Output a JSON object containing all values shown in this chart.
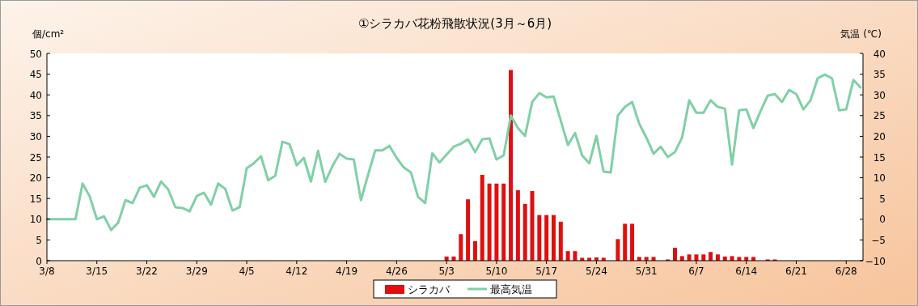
{
  "chart_data": {
    "type": "bar",
    "title": "①シラカバ花粉飛散状況(3月～6月)",
    "ylabel": "個/cm²",
    "y2label": "気温 (℃)",
    "categories": [
      "3/8",
      null,
      null,
      null,
      null,
      null,
      null,
      "3/15",
      null,
      null,
      null,
      null,
      null,
      null,
      "3/22",
      null,
      null,
      null,
      null,
      null,
      null,
      "3/29",
      null,
      null,
      null,
      null,
      null,
      null,
      "4/5",
      null,
      null,
      null,
      null,
      null,
      null,
      "4/12",
      null,
      null,
      null,
      null,
      null,
      null,
      "4/19",
      null,
      null,
      null,
      null,
      null,
      null,
      "4/26",
      null,
      null,
      null,
      null,
      null,
      null,
      "5/3",
      null,
      null,
      null,
      null,
      null,
      null,
      "5/10",
      null,
      null,
      null,
      null,
      null,
      null,
      "5/17",
      null,
      null,
      null,
      null,
      null,
      null,
      "5/24",
      null,
      null,
      null,
      null,
      null,
      null,
      "5/31",
      null,
      null,
      null,
      null,
      null,
      null,
      "6/7",
      null,
      null,
      null,
      null,
      null,
      null,
      "6/14",
      null,
      null,
      null,
      null,
      null,
      null,
      "6/21",
      null,
      null,
      null,
      null,
      null,
      null,
      "6/28",
      null,
      null
    ],
    "series": [
      {
        "name": "シラカバ",
        "color": "#e00f0f",
        "values": [
          null,
          null,
          null,
          null,
          null,
          null,
          null,
          null,
          null,
          null,
          null,
          null,
          null,
          null,
          null,
          null,
          null,
          null,
          null,
          null,
          null,
          null,
          null,
          null,
          null,
          null,
          null,
          null,
          null,
          null,
          null,
          null,
          null,
          null,
          null,
          null,
          null,
          null,
          null,
          null,
          null,
          null,
          null,
          null,
          null,
          null,
          null,
          null,
          null,
          null,
          null,
          null,
          null,
          null,
          null,
          null,
          1.0,
          1.0,
          6.4,
          14.8,
          4.7,
          20.7,
          18.6,
          18.6,
          18.6,
          46,
          17.0,
          13.7,
          16.8,
          11.0,
          11.0,
          11.0,
          9.4,
          2.3,
          2.3,
          0.7,
          0.7,
          0.8,
          0.7,
          null,
          5.2,
          8.9,
          8.9,
          0.9,
          0.9,
          0.9,
          null,
          0.3,
          3.1,
          1.1,
          1.5,
          1.5,
          1.5,
          2.1,
          1.5,
          1.0,
          1.1,
          0.9,
          0.9,
          0.9,
          null,
          0.3,
          0.3,
          null,
          null,
          null,
          null,
          null,
          null,
          null,
          null,
          null,
          null,
          null,
          null
        ]
      },
      {
        "name": "最高気温",
        "type": "line",
        "axis": "y2",
        "color": "#80d0a6",
        "values": [
          0,
          0,
          0,
          0,
          0,
          8.6,
          5.5,
          0,
          0.7,
          -2.6,
          -0.8,
          4.6,
          3.9,
          7.6,
          8.2,
          5.4,
          9.1,
          7.2,
          2.9,
          2.7,
          1.9,
          5.6,
          6.4,
          3.5,
          8.6,
          7.3,
          2.1,
          2.9,
          12.3,
          13.5,
          15.2,
          9.4,
          10.5,
          18.7,
          18.1,
          13.0,
          14.8,
          9.1,
          16.5,
          9.0,
          12.8,
          15.8,
          14.6,
          14.4,
          4.6,
          10.7,
          16.6,
          16.6,
          17.7,
          14.8,
          12.5,
          11.3,
          5.4,
          3.9,
          15.9,
          13.7,
          15.6,
          17.5,
          18.2,
          19.3,
          16.2,
          19.3,
          19.5,
          14.4,
          15.4,
          25.0,
          22.0,
          20.1,
          28.3,
          30.4,
          29.4,
          29.6,
          23.8,
          17.9,
          20.8,
          15.4,
          13.5,
          20.1,
          11.5,
          11.3,
          25.0,
          27.1,
          28.3,
          23.0,
          19.7,
          15.8,
          17.5,
          15.0,
          16.2,
          19.7,
          28.7,
          25.7,
          25.7,
          28.7,
          27.1,
          26.7,
          13.2,
          26.3,
          26.5,
          22.0,
          26.1,
          29.8,
          30.2,
          28.3,
          31.2,
          30.2,
          26.5,
          28.7,
          34.0,
          34.9,
          34.0,
          26.3,
          26.5,
          33.6,
          31.8
        ]
      }
    ],
    "ylim": [
      0,
      50
    ],
    "yticks": [
      0,
      5,
      10,
      15,
      20,
      25,
      30,
      35,
      40,
      45,
      50
    ],
    "y2lim": [
      -10,
      40
    ],
    "y2ticks": [
      -10,
      -5,
      0,
      5,
      10,
      15,
      20,
      25,
      30,
      35,
      40
    ],
    "legend": "bottom"
  }
}
